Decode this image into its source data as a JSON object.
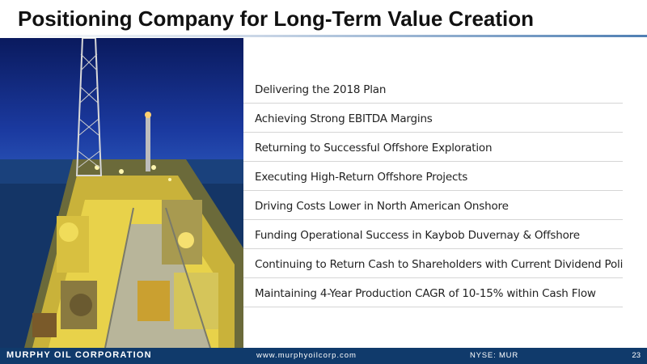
{
  "slide": {
    "title": "Positioning Company for Long-Term Value Creation",
    "bullets": [
      "Delivering the 2018 Plan",
      "Achieving Strong EBITDA Margins",
      "Returning to Successful Offshore Exploration",
      "Executing High-Return Offshore Projects",
      "Driving Costs Lower in North American Onshore",
      "Funding Operational Success in Kaybob Duvernay & Offshore",
      "Continuing to Return Cash to Shareholders with Current Dividend Policy",
      "Maintaining 4-Year Production CAGR of 10-15% within Cash Flow"
    ]
  },
  "footer": {
    "company": "MURPHY OIL CORPORATION",
    "website": "www.murphyoilcorp.com",
    "ticker": "NYSE: MUR",
    "page_number": "23"
  },
  "colors": {
    "footer_bg": "#103a6b",
    "title_text": "#111111",
    "rule_accent": "#4f7fb3"
  }
}
